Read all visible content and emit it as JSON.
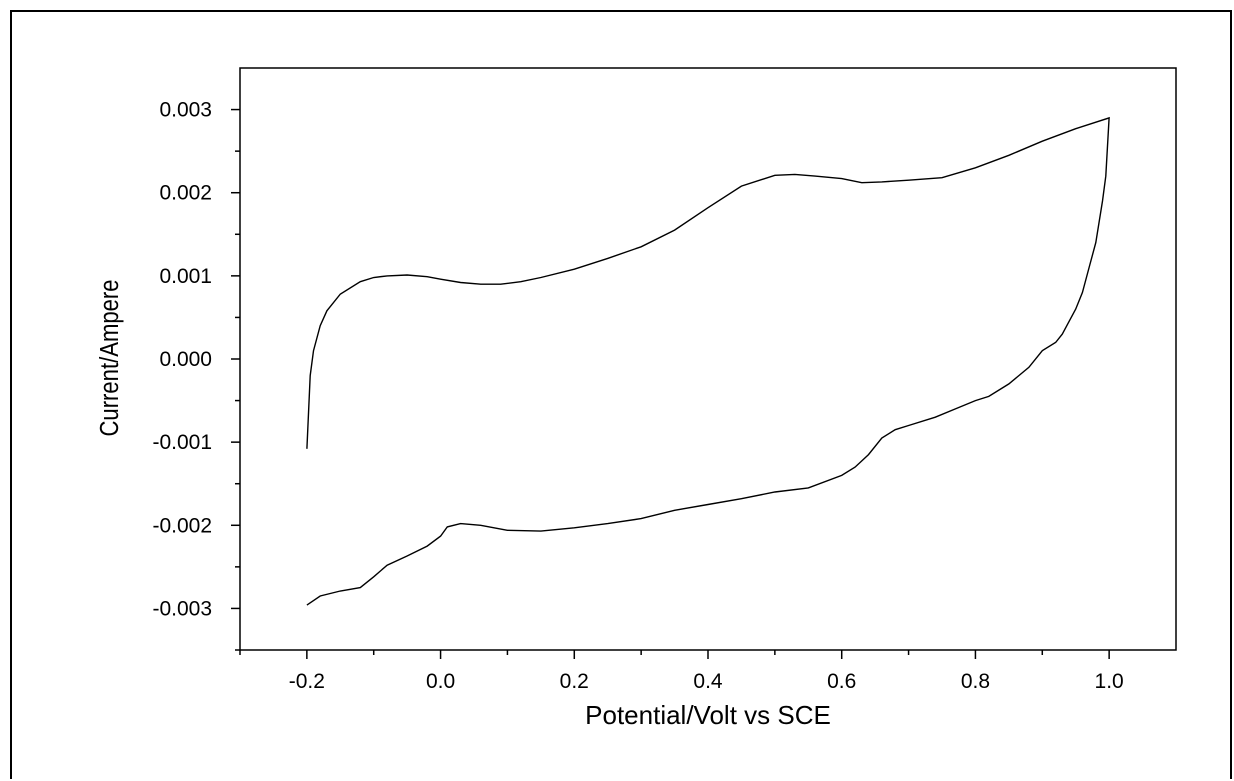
{
  "chart_data": {
    "type": "line",
    "title": "",
    "xlabel": "Potential/Volt vs SCE",
    "ylabel": "Current/Ampere",
    "xlim": [
      -0.3,
      1.1
    ],
    "ylim": [
      -0.0035,
      0.0035
    ],
    "x_ticks": [
      -0.2,
      0.0,
      0.2,
      0.4,
      0.6,
      0.8,
      1.0
    ],
    "x_tick_labels": [
      "-0.2",
      "0.0",
      "0.2",
      "0.4",
      "0.6",
      "0.8",
      "1.0"
    ],
    "y_ticks": [
      0.003,
      0.002,
      0.001,
      0.0,
      -0.001,
      -0.002,
      -0.003
    ],
    "y_tick_labels": [
      "0.003",
      "0.002",
      "0.001",
      "0.000",
      "-0.001",
      "-0.002",
      "-0.003"
    ],
    "grid": false,
    "line_color": "#000000",
    "series": [
      {
        "x": [
          -0.2,
          -0.195,
          -0.19,
          -0.18,
          -0.17,
          -0.15,
          -0.12,
          -0.1,
          -0.08,
          -0.05,
          -0.02,
          0.0,
          0.03,
          0.06,
          0.09,
          0.12,
          0.15,
          0.2,
          0.25,
          0.3,
          0.35,
          0.4,
          0.45,
          0.5,
          0.53,
          0.56,
          0.6,
          0.63,
          0.66,
          0.7,
          0.75,
          0.8,
          0.85,
          0.9,
          0.95,
          1.0,
          1.0,
          0.995,
          0.99,
          0.98,
          0.97,
          0.96,
          0.95,
          0.94,
          0.93,
          0.92,
          0.9,
          0.88,
          0.85,
          0.82,
          0.8,
          0.77,
          0.74,
          0.7,
          0.68,
          0.66,
          0.64,
          0.62,
          0.6,
          0.55,
          0.5,
          0.45,
          0.4,
          0.35,
          0.3,
          0.25,
          0.2,
          0.15,
          0.1,
          0.06,
          0.03,
          0.01,
          0.0,
          -0.02,
          -0.05,
          -0.08,
          -0.1,
          -0.12,
          -0.15,
          -0.18,
          -0.2
        ],
        "y": [
          -0.00108,
          -0.0002,
          0.0001,
          0.0004,
          0.00058,
          0.00078,
          0.00093,
          0.00098,
          0.001,
          0.00101,
          0.00099,
          0.00096,
          0.00092,
          0.0009,
          0.0009,
          0.00093,
          0.00098,
          0.00108,
          0.00121,
          0.00135,
          0.00155,
          0.00182,
          0.00208,
          0.00221,
          0.00222,
          0.0022,
          0.00217,
          0.00212,
          0.00213,
          0.00215,
          0.00218,
          0.0023,
          0.00245,
          0.00262,
          0.00277,
          0.0029,
          0.0029,
          0.0022,
          0.0019,
          0.0014,
          0.0011,
          0.0008,
          0.0006,
          0.00045,
          0.0003,
          0.0002,
          0.0001,
          -0.0001,
          -0.0003,
          -0.00045,
          -0.0005,
          -0.0006,
          -0.0007,
          -0.0008,
          -0.00085,
          -0.00095,
          -0.00115,
          -0.0013,
          -0.0014,
          -0.00155,
          -0.0016,
          -0.00168,
          -0.00175,
          -0.00182,
          -0.00192,
          -0.00198,
          -0.00203,
          -0.00207,
          -0.00206,
          -0.002,
          -0.00198,
          -0.00202,
          -0.00213,
          -0.00225,
          -0.00237,
          -0.00248,
          -0.00262,
          -0.00275,
          -0.00279,
          -0.00285,
          -0.00296
        ]
      }
    ]
  }
}
